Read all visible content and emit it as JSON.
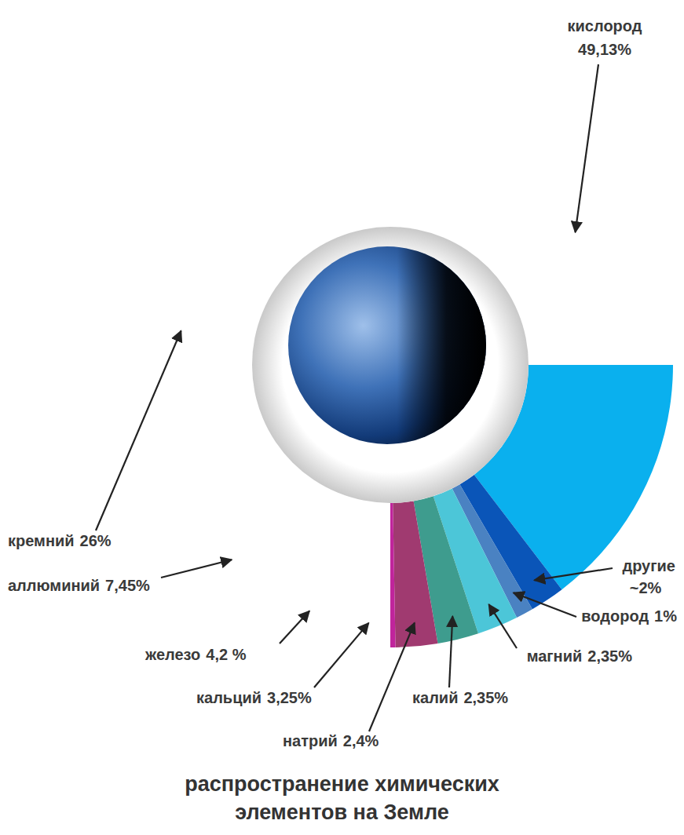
{
  "chart_data": {
    "type": "pie",
    "title": "распространение химических элементов на Земле",
    "categories": [
      "кислород",
      "другие",
      "водород",
      "магний",
      "калий",
      "натрий",
      "кальций",
      "железо",
      "аллюминий",
      "кремний"
    ],
    "values": [
      49.13,
      2,
      1,
      2.35,
      2.35,
      2.4,
      3.25,
      4.2,
      7.45,
      26
    ],
    "value_labels": [
      "49,13%",
      "~2%",
      "1%",
      "2,35%",
      "2,35%",
      "2,4%",
      "3,25%",
      "4,2 %",
      "7,45%",
      "26%"
    ],
    "colors": [
      "#0ab0ee",
      "#0a55b8",
      "#4a82c2",
      "#4cc6d8",
      "#3e9c8e",
      "#a03a70",
      "#c0249c",
      "#f2134f",
      "#a8a8a8",
      "#557a55"
    ],
    "data_labels": true
  }
}
